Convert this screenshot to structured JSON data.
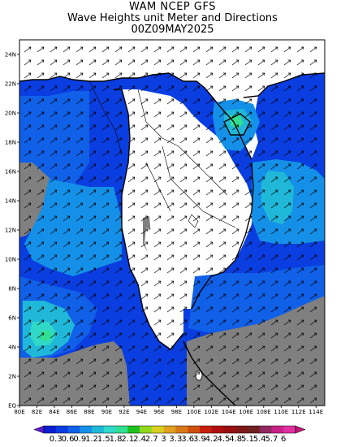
{
  "title": {
    "line1": "WAM NCEP GFS",
    "line2": "Wave Heights unit Meter and Directions",
    "line3": "00Z09MAY2025"
  },
  "axes": {
    "x_ticks": [
      "80E",
      "82E",
      "84E",
      "86E",
      "88E",
      "90E",
      "92E",
      "94E",
      "96E",
      "98E",
      "100E",
      "102E",
      "104E",
      "106E",
      "108E",
      "110E",
      "112E",
      "114E"
    ],
    "y_ticks": [
      "EQ",
      "2N",
      "4N",
      "6N",
      "8N",
      "10N",
      "12N",
      "14N",
      "16N",
      "18N",
      "20N",
      "22N",
      "24N"
    ],
    "lon_range": [
      80,
      115
    ],
    "lat_range": [
      0,
      25
    ]
  },
  "colorbar": {
    "labels": [
      "0.3",
      "0.6",
      "0.9",
      "1.2",
      "1.5",
      "1.8",
      "2.1",
      "2.4",
      "2.7",
      "3",
      "3.3",
      "3.6",
      "3.9",
      "4.2",
      "4.5",
      "4.8",
      "5.1",
      "5.4",
      "5.7",
      "6"
    ],
    "colors": [
      "#0a1fd0",
      "#0a3ee0",
      "#1060e8",
      "#1590e8",
      "#20b8d8",
      "#30d8c8",
      "#30e090",
      "#20c020",
      "#90d820",
      "#d8d020",
      "#e0a020",
      "#d87818",
      "#d05010",
      "#c82010",
      "#b01010",
      "#981010",
      "#801818",
      "#702020",
      "#902860",
      "#c82088",
      "#e030a0"
    ]
  },
  "legend": {
    "land_color": "#ffffff",
    "nodata_color": "#808080",
    "sea_color": "#0a3ee0"
  }
}
